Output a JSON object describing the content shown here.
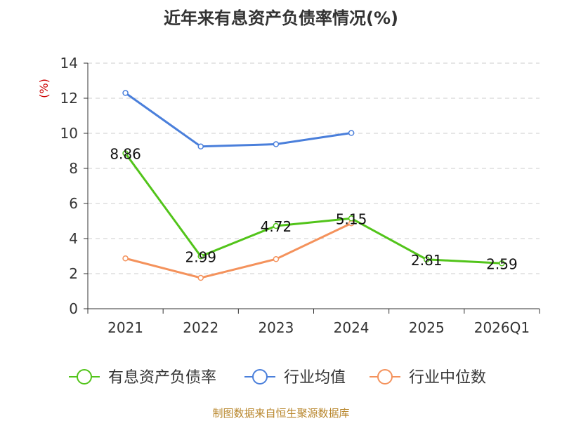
{
  "chart_data": {
    "type": "line",
    "title": "近年来有息资产负债率情况(%)",
    "ylabel": "(%)",
    "xlabel": "",
    "categories": [
      "2021",
      "2022",
      "2023",
      "2024",
      "2025",
      "2026Q1"
    ],
    "ylim": [
      0,
      14
    ],
    "yticks": [
      0,
      2,
      4,
      6,
      8,
      10,
      12,
      14
    ],
    "grid": true,
    "legend_position": "bottom",
    "series": [
      {
        "name": "有息资产负债率",
        "color": "#52c41a",
        "values": [
          8.86,
          2.99,
          4.72,
          5.15,
          2.81,
          2.59
        ],
        "labels": [
          "8.86",
          "2.99",
          "4.72",
          "5.15",
          "2.81",
          "2.59"
        ]
      },
      {
        "name": "行业均值",
        "color": "#4a7fdb",
        "values": [
          12.3,
          9.25,
          9.38,
          10.02,
          null,
          null
        ]
      },
      {
        "name": "行业中位数",
        "color": "#f4925c",
        "values": [
          2.87,
          1.76,
          2.83,
          4.87,
          null,
          null
        ]
      }
    ]
  },
  "source": "制图数据来自恒生聚源数据库"
}
